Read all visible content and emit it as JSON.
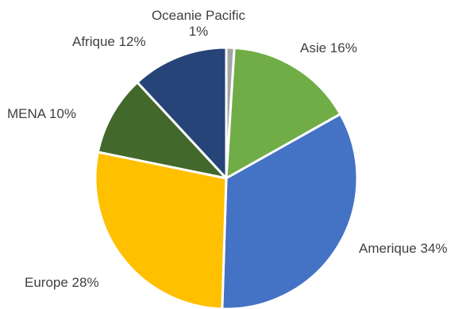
{
  "chart_data": {
    "type": "pie",
    "title": "",
    "start_angle_deg": 0,
    "direction": "clockwise",
    "slices": [
      {
        "label": "Oceanie Pacific",
        "percent_text": "1%",
        "value": 1,
        "color": "#a5a5a5"
      },
      {
        "label": "Asie",
        "percent_text": "16%",
        "value": 16,
        "color": "#70ad47"
      },
      {
        "label": "Amerique",
        "percent_text": "34%",
        "value": 34,
        "color": "#4472c4"
      },
      {
        "label": "Europe",
        "percent_text": "28%",
        "value": 28,
        "color": "#ffc000"
      },
      {
        "label": "MENA",
        "percent_text": "10%",
        "value": 10,
        "color": "#43682b"
      },
      {
        "label": "Afrique",
        "percent_text": "12%",
        "value": 12,
        "color": "#264478"
      }
    ]
  }
}
